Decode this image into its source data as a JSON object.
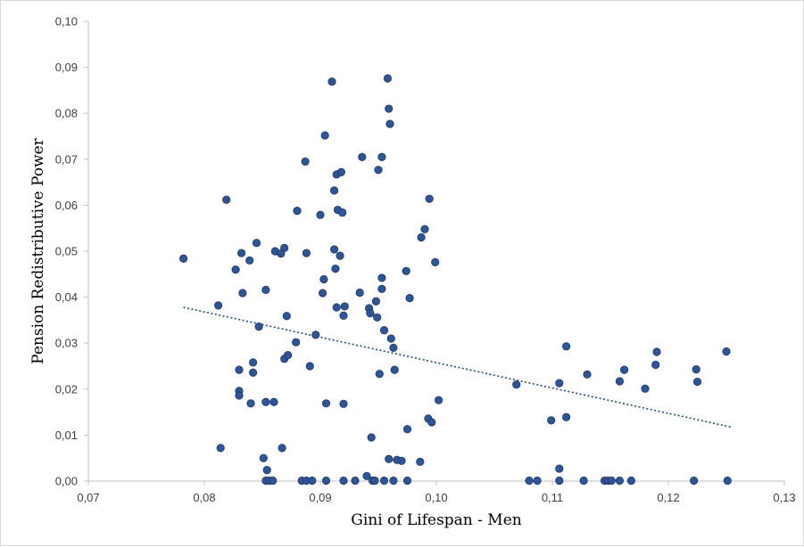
{
  "chart_data": {
    "type": "scatter",
    "title": "",
    "xlabel": "Gini of Lifespan - Men",
    "ylabel": "Pension Redistributive Power",
    "xlim": [
      0.07,
      0.13
    ],
    "ylim": [
      0.0,
      0.1
    ],
    "x_ticks": [
      0.07,
      0.08,
      0.09,
      0.1,
      0.11,
      0.12,
      0.13
    ],
    "y_ticks": [
      0.0,
      0.01,
      0.02,
      0.03,
      0.04,
      0.05,
      0.06,
      0.07,
      0.08,
      0.09,
      0.1
    ],
    "x_tick_labels": [
      "0,07",
      "0,08",
      "0,09",
      "0,10",
      "0,11",
      "0,12",
      "0,13"
    ],
    "y_tick_labels": [
      "0,00",
      "0,01",
      "0,02",
      "0,03",
      "0,04",
      "0,05",
      "0,06",
      "0,07",
      "0,08",
      "0,09",
      "0,10"
    ],
    "grid": false,
    "legend": "none",
    "colors": {
      "point": "#2e5597",
      "trendline": "#1f4e79"
    },
    "trendline": {
      "style": "dotted",
      "x": [
        0.0782,
        0.1255
      ],
      "y": [
        0.0378,
        0.0117
      ]
    },
    "points": [
      [
        0.0782,
        0.0484
      ],
      [
        0.0812,
        0.0382
      ],
      [
        0.0814,
        0.0072
      ],
      [
        0.0819,
        0.0612
      ],
      [
        0.0827,
        0.046
      ],
      [
        0.083,
        0.0242
      ],
      [
        0.083,
        0.0196
      ],
      [
        0.083,
        0.0186
      ],
      [
        0.0832,
        0.0496
      ],
      [
        0.0833,
        0.0409
      ],
      [
        0.0839,
        0.048
      ],
      [
        0.084,
        0.0169
      ],
      [
        0.0842,
        0.0258
      ],
      [
        0.0842,
        0.0236
      ],
      [
        0.0845,
        0.0518
      ],
      [
        0.0847,
        0.0336
      ],
      [
        0.0851,
        0.005
      ],
      [
        0.0853,
        0.0416
      ],
      [
        0.0853,
        0.0172
      ],
      [
        0.0854,
        0.0024
      ],
      [
        0.0853,
        0.0001
      ],
      [
        0.0856,
        0.0001
      ],
      [
        0.0859,
        0.0001
      ],
      [
        0.086,
        0.0172
      ],
      [
        0.0861,
        0.05
      ],
      [
        0.0866,
        0.0495
      ],
      [
        0.0867,
        0.0072
      ],
      [
        0.0869,
        0.0507
      ],
      [
        0.0869,
        0.0266
      ],
      [
        0.0871,
        0.0359
      ],
      [
        0.0872,
        0.0274
      ],
      [
        0.0879,
        0.0302
      ],
      [
        0.088,
        0.0588
      ],
      [
        0.0884,
        0.0001
      ],
      [
        0.0887,
        0.0695
      ],
      [
        0.0888,
        0.0496
      ],
      [
        0.0888,
        0.0001
      ],
      [
        0.0891,
        0.025
      ],
      [
        0.0893,
        0.0001
      ],
      [
        0.0896,
        0.0318
      ],
      [
        0.09,
        0.0579
      ],
      [
        0.0902,
        0.0409
      ],
      [
        0.0903,
        0.0439
      ],
      [
        0.0904,
        0.0752
      ],
      [
        0.0905,
        0.0169
      ],
      [
        0.0905,
        0.0001
      ],
      [
        0.091,
        0.0869
      ],
      [
        0.0912,
        0.0632
      ],
      [
        0.0912,
        0.0504
      ],
      [
        0.0913,
        0.0462
      ],
      [
        0.0914,
        0.0667
      ],
      [
        0.0914,
        0.0378
      ],
      [
        0.0915,
        0.059
      ],
      [
        0.0917,
        0.049
      ],
      [
        0.0918,
        0.0672
      ],
      [
        0.0919,
        0.0584
      ],
      [
        0.092,
        0.036
      ],
      [
        0.092,
        0.0168
      ],
      [
        0.092,
        0.0001
      ],
      [
        0.0921,
        0.038
      ],
      [
        0.093,
        0.0001
      ],
      [
        0.0934,
        0.041
      ],
      [
        0.0936,
        0.0705
      ],
      [
        0.094,
        0.0011
      ],
      [
        0.0942,
        0.0376
      ],
      [
        0.0943,
        0.0365
      ],
      [
        0.0944,
        0.0095
      ],
      [
        0.0945,
        0.0001
      ],
      [
        0.0947,
        0.0001
      ],
      [
        0.0948,
        0.0391
      ],
      [
        0.0949,
        0.0356
      ],
      [
        0.095,
        0.0677
      ],
      [
        0.0951,
        0.0233
      ],
      [
        0.0953,
        0.0442
      ],
      [
        0.0953,
        0.0418
      ],
      [
        0.0953,
        0.0705
      ],
      [
        0.0955,
        0.0328
      ],
      [
        0.0955,
        0.0001
      ],
      [
        0.0958,
        0.0876
      ],
      [
        0.0959,
        0.081
      ],
      [
        0.0959,
        0.0048
      ],
      [
        0.096,
        0.0777
      ],
      [
        0.0961,
        0.031
      ],
      [
        0.0963,
        0.029
      ],
      [
        0.0963,
        0.0001
      ],
      [
        0.0964,
        0.0242
      ],
      [
        0.0966,
        0.0046
      ],
      [
        0.097,
        0.0044
      ],
      [
        0.0974,
        0.0457
      ],
      [
        0.0975,
        0.0113
      ],
      [
        0.0975,
        0.0001
      ],
      [
        0.0977,
        0.0398
      ],
      [
        0.0986,
        0.0042
      ],
      [
        0.0987,
        0.053
      ],
      [
        0.099,
        0.0548
      ],
      [
        0.0993,
        0.0136
      ],
      [
        0.0994,
        0.0614
      ],
      [
        0.0996,
        0.0128
      ],
      [
        0.0999,
        0.0476
      ],
      [
        0.1002,
        0.0176
      ],
      [
        0.1069,
        0.021
      ],
      [
        0.108,
        0.0001
      ],
      [
        0.1087,
        0.0001
      ],
      [
        0.1099,
        0.0132
      ],
      [
        0.1106,
        0.0213
      ],
      [
        0.1106,
        0.0027
      ],
      [
        0.1106,
        0.0001
      ],
      [
        0.1112,
        0.0293
      ],
      [
        0.1112,
        0.0139
      ],
      [
        0.1127,
        0.0001
      ],
      [
        0.113,
        0.0232
      ],
      [
        0.1145,
        0.0001
      ],
      [
        0.1148,
        0.0001
      ],
      [
        0.1151,
        0.0001
      ],
      [
        0.1158,
        0.0001
      ],
      [
        0.1158,
        0.0217
      ],
      [
        0.1162,
        0.0242
      ],
      [
        0.1168,
        0.0001
      ],
      [
        0.118,
        0.0201
      ],
      [
        0.1189,
        0.0253
      ],
      [
        0.119,
        0.0281
      ],
      [
        0.1222,
        0.0001
      ],
      [
        0.1224,
        0.0243
      ],
      [
        0.1225,
        0.0216
      ],
      [
        0.125,
        0.0282
      ],
      [
        0.1251,
        0.0001
      ]
    ]
  }
}
